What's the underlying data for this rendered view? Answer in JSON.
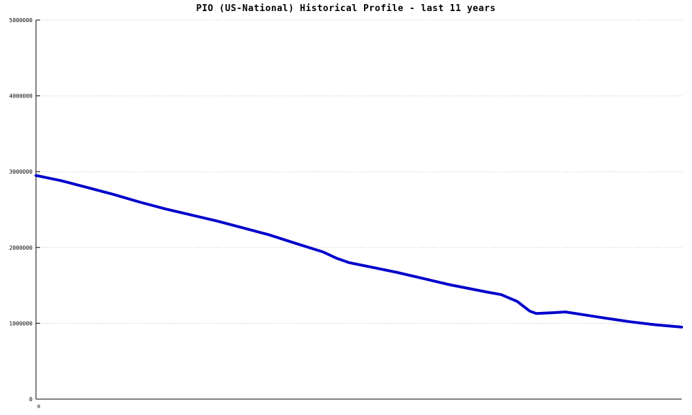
{
  "title": "PIO (US-National) Historical Profile - last 11 years",
  "chart_data": {
    "type": "line",
    "title": "PIO (US-National) Historical Profile - last 11 years",
    "xlabel": "",
    "ylabel": "",
    "background_color": "#ffffff",
    "axis_color": "#000000",
    "grid": "horizontal-dotted",
    "grid_color": "#b0b0b0",
    "legend": "none",
    "x_axis": {
      "range": [
        0,
        1
      ],
      "tick_labels": [
        "0"
      ]
    },
    "y_axis": {
      "range": [
        0,
        5000000
      ],
      "ticks": [
        0,
        1000000,
        2000000,
        3000000,
        4000000,
        5000000
      ],
      "tick_labels": [
        "0",
        "1000000",
        "2000000",
        "3000000",
        "4000000",
        "5000000"
      ]
    },
    "series": [
      {
        "name": "PIO (US-National)",
        "color": "#0000cc",
        "line_width": 4,
        "points": [
          [
            0.0,
            2950000
          ],
          [
            0.04,
            2880000
          ],
          [
            0.08,
            2790000
          ],
          [
            0.12,
            2700000
          ],
          [
            0.16,
            2600000
          ],
          [
            0.2,
            2510000
          ],
          [
            0.24,
            2430000
          ],
          [
            0.28,
            2350000
          ],
          [
            0.32,
            2260000
          ],
          [
            0.36,
            2170000
          ],
          [
            0.4,
            2060000
          ],
          [
            0.43,
            1980000
          ],
          [
            0.445,
            1940000
          ],
          [
            0.465,
            1860000
          ],
          [
            0.485,
            1800000
          ],
          [
            0.52,
            1740000
          ],
          [
            0.56,
            1670000
          ],
          [
            0.6,
            1590000
          ],
          [
            0.64,
            1510000
          ],
          [
            0.67,
            1460000
          ],
          [
            0.7,
            1410000
          ],
          [
            0.72,
            1380000
          ],
          [
            0.745,
            1290000
          ],
          [
            0.765,
            1160000
          ],
          [
            0.775,
            1130000
          ],
          [
            0.8,
            1140000
          ],
          [
            0.82,
            1150000
          ],
          [
            0.85,
            1110000
          ],
          [
            0.88,
            1070000
          ],
          [
            0.92,
            1020000
          ],
          [
            0.96,
            980000
          ],
          [
            1.0,
            950000
          ]
        ]
      }
    ]
  }
}
